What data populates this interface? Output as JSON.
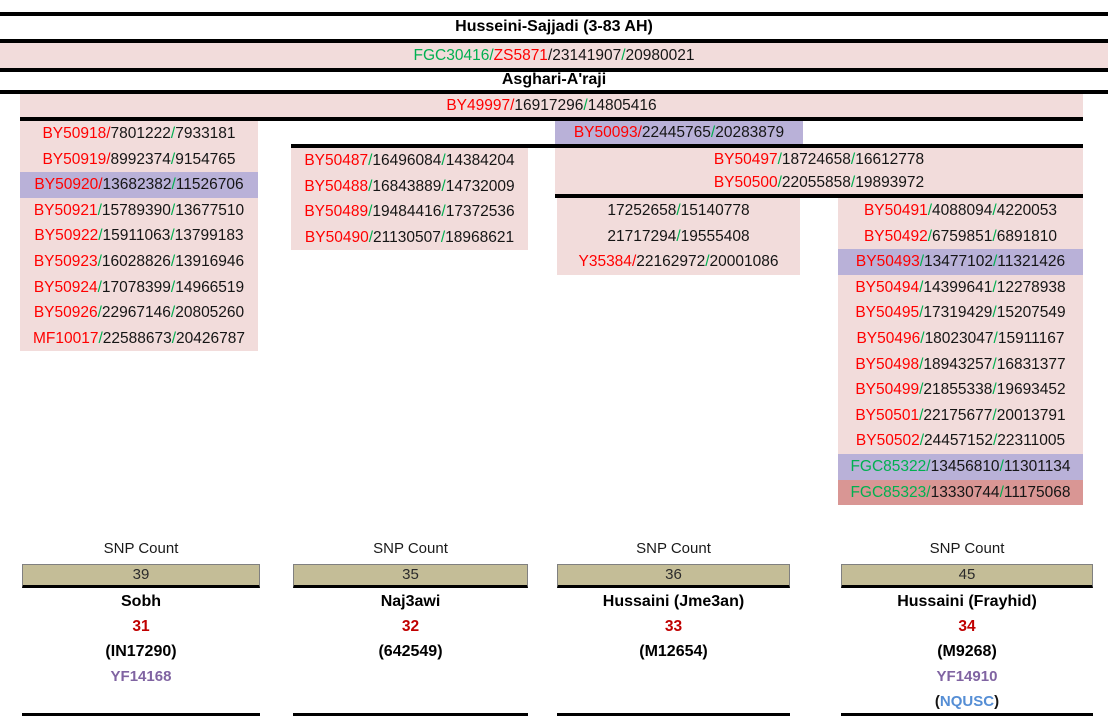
{
  "colors": {
    "pink_row": "#f2dcdb",
    "lavender_highlight": "#b9b1d8",
    "salmon_highlight": "#d99694",
    "tan_count_box": "#c4bd97",
    "snp_red": "#ff0000",
    "snp_green": "#00b050",
    "branch_number_red": "#c00000",
    "yfull_purple": "#8064a2",
    "id_blue": "#558ed5"
  },
  "header": {
    "title1": "Husseini-Sajjadi (3-83 AH)",
    "lineage": [
      [
        "FGC30416",
        "green"
      ],
      [
        "/",
        "green"
      ],
      [
        "ZS5871",
        "red"
      ],
      [
        "/",
        "black"
      ],
      [
        "23141907",
        "black"
      ],
      [
        "/",
        "green"
      ],
      [
        "20980021",
        "black"
      ]
    ],
    "title2": "Asghari-A'raji"
  },
  "tree": {
    "root": {
      "segments": [
        [
          "BY49997",
          "red"
        ],
        [
          "/",
          "red"
        ],
        [
          "16917296",
          "black"
        ],
        [
          "/",
          "green"
        ],
        [
          "14805416",
          "black"
        ]
      ]
    },
    "by50093": {
      "segments": [
        [
          "BY50093",
          "red"
        ],
        [
          "/",
          "red"
        ],
        [
          "22445765",
          "black"
        ],
        [
          "/",
          "green"
        ],
        [
          "20283879",
          "black"
        ]
      ],
      "bg": "lavender"
    },
    "col1_rows": [
      {
        "segments": [
          [
            "BY50918",
            "red"
          ],
          [
            "/",
            "red"
          ],
          [
            "7801222",
            "black"
          ],
          [
            "/",
            "green"
          ],
          [
            "7933181",
            "black"
          ]
        ],
        "bg": "pink"
      },
      {
        "segments": [
          [
            "BY50919",
            "red"
          ],
          [
            "/",
            "red"
          ],
          [
            "8992374",
            "black"
          ],
          [
            "/",
            "green"
          ],
          [
            "9154765",
            "black"
          ]
        ],
        "bg": "pink"
      },
      {
        "segments": [
          [
            "BY50920",
            "red"
          ],
          [
            "/",
            "red"
          ],
          [
            "13682382",
            "black"
          ],
          [
            "/",
            "green"
          ],
          [
            "11526706",
            "black"
          ]
        ],
        "bg": "lavender"
      },
      {
        "segments": [
          [
            "BY50921",
            "red"
          ],
          [
            "/",
            "green"
          ],
          [
            "15789390",
            "black"
          ],
          [
            "/",
            "green"
          ],
          [
            "13677510",
            "black"
          ]
        ],
        "bg": "pink"
      },
      {
        "segments": [
          [
            "BY50922",
            "red"
          ],
          [
            "/",
            "green"
          ],
          [
            "15911063",
            "black"
          ],
          [
            "/",
            "green"
          ],
          [
            "13799183",
            "black"
          ]
        ],
        "bg": "pink"
      },
      {
        "segments": [
          [
            "BY50923",
            "red"
          ],
          [
            "/",
            "green"
          ],
          [
            "16028826",
            "black"
          ],
          [
            "/",
            "green"
          ],
          [
            "13916946",
            "black"
          ]
        ],
        "bg": "pink"
      },
      {
        "segments": [
          [
            "BY50924",
            "red"
          ],
          [
            "/",
            "green"
          ],
          [
            "17078399",
            "black"
          ],
          [
            "/",
            "green"
          ],
          [
            "14966519",
            "black"
          ]
        ],
        "bg": "pink"
      },
      {
        "segments": [
          [
            "BY50926",
            "red"
          ],
          [
            "/",
            "green"
          ],
          [
            "22967146",
            "black"
          ],
          [
            "/",
            "green"
          ],
          [
            "20805260",
            "black"
          ]
        ],
        "bg": "pink"
      },
      {
        "segments": [
          [
            "MF10017",
            "red"
          ],
          [
            "/",
            "green"
          ],
          [
            "22588673",
            "black"
          ],
          [
            "/",
            "green"
          ],
          [
            "20426787",
            "black"
          ]
        ],
        "bg": "pink"
      }
    ],
    "col2_rows": [
      {
        "segments": [
          [
            "BY50487",
            "red"
          ],
          [
            "/",
            "green"
          ],
          [
            "16496084",
            "black"
          ],
          [
            "/",
            "green"
          ],
          [
            "14384204",
            "black"
          ]
        ],
        "bg": "pink"
      },
      {
        "segments": [
          [
            "BY50488",
            "red"
          ],
          [
            "/",
            "green"
          ],
          [
            "16843889",
            "black"
          ],
          [
            "/",
            "green"
          ],
          [
            "14732009",
            "black"
          ]
        ],
        "bg": "pink"
      },
      {
        "segments": [
          [
            "BY50489",
            "red"
          ],
          [
            "/",
            "green"
          ],
          [
            "19484416",
            "black"
          ],
          [
            "/",
            "green"
          ],
          [
            "17372536",
            "black"
          ]
        ],
        "bg": "pink"
      },
      {
        "segments": [
          [
            "BY50490",
            "red"
          ],
          [
            "/",
            "green"
          ],
          [
            "21130507",
            "black"
          ],
          [
            "/",
            "green"
          ],
          [
            "18968621",
            "black"
          ]
        ],
        "bg": "pink"
      }
    ],
    "mid_rows": [
      {
        "segments": [
          [
            "BY50497",
            "red"
          ],
          [
            "/",
            "green"
          ],
          [
            "18724658",
            "black"
          ],
          [
            "/",
            "green"
          ],
          [
            "16612778",
            "black"
          ]
        ],
        "bg": "pink"
      },
      {
        "segments": [
          [
            "BY50500",
            "red"
          ],
          [
            "/",
            "green"
          ],
          [
            "22055858",
            "black"
          ],
          [
            "/",
            "green"
          ],
          [
            "19893972",
            "black"
          ]
        ],
        "bg": "pink"
      }
    ],
    "col3_rows": [
      {
        "segments": [
          [
            "17252658",
            "black"
          ],
          [
            "/",
            "green"
          ],
          [
            "15140778",
            "black"
          ]
        ],
        "bg": "pink"
      },
      {
        "segments": [
          [
            "21717294",
            "black"
          ],
          [
            "/",
            "green"
          ],
          [
            "19555408",
            "black"
          ]
        ],
        "bg": "pink"
      },
      {
        "segments": [
          [
            "Y35384",
            "red"
          ],
          [
            "/",
            "red"
          ],
          [
            "22162972",
            "black"
          ],
          [
            "/",
            "green"
          ],
          [
            "20001086",
            "black"
          ]
        ],
        "bg": "pink"
      }
    ],
    "col4_rows": [
      {
        "segments": [
          [
            "BY50491",
            "red"
          ],
          [
            "/",
            "green"
          ],
          [
            "4088094",
            "black"
          ],
          [
            "/",
            "green"
          ],
          [
            "4220053",
            "black"
          ]
        ],
        "bg": "pink"
      },
      {
        "segments": [
          [
            "BY50492",
            "red"
          ],
          [
            "/",
            "green"
          ],
          [
            "6759851",
            "black"
          ],
          [
            "/",
            "green"
          ],
          [
            "6891810",
            "black"
          ]
        ],
        "bg": "pink"
      },
      {
        "segments": [
          [
            "BY50493",
            "red"
          ],
          [
            "/",
            "green"
          ],
          [
            "13477102",
            "black"
          ],
          [
            "/",
            "green"
          ],
          [
            "11321426",
            "black"
          ]
        ],
        "bg": "lavender"
      },
      {
        "segments": [
          [
            "BY50494",
            "red"
          ],
          [
            "/",
            "green"
          ],
          [
            "14399641",
            "black"
          ],
          [
            "/",
            "green"
          ],
          [
            "12278938",
            "black"
          ]
        ],
        "bg": "pink"
      },
      {
        "segments": [
          [
            "BY50495",
            "red"
          ],
          [
            "/",
            "green"
          ],
          [
            "17319429",
            "black"
          ],
          [
            "/",
            "green"
          ],
          [
            "15207549",
            "black"
          ]
        ],
        "bg": "pink"
      },
      {
        "segments": [
          [
            "BY50496",
            "red"
          ],
          [
            "/",
            "green"
          ],
          [
            "18023047",
            "black"
          ],
          [
            "/",
            "green"
          ],
          [
            "15911167",
            "black"
          ]
        ],
        "bg": "pink"
      },
      {
        "segments": [
          [
            "BY50498",
            "red"
          ],
          [
            "/",
            "green"
          ],
          [
            "18943257",
            "black"
          ],
          [
            "/",
            "green"
          ],
          [
            "16831377",
            "black"
          ]
        ],
        "bg": "pink"
      },
      {
        "segments": [
          [
            "BY50499",
            "red"
          ],
          [
            "/",
            "green"
          ],
          [
            "21855338",
            "black"
          ],
          [
            "/",
            "green"
          ],
          [
            "19693452",
            "black"
          ]
        ],
        "bg": "pink"
      },
      {
        "segments": [
          [
            "BY50501",
            "red"
          ],
          [
            "/",
            "green"
          ],
          [
            "22175677",
            "black"
          ],
          [
            "/",
            "green"
          ],
          [
            "20013791",
            "black"
          ]
        ],
        "bg": "pink"
      },
      {
        "segments": [
          [
            "BY50502",
            "red"
          ],
          [
            "/",
            "green"
          ],
          [
            "24457152",
            "black"
          ],
          [
            "/",
            "green"
          ],
          [
            "22311005",
            "black"
          ]
        ],
        "bg": "pink"
      },
      {
        "segments": [
          [
            "FGC85322",
            "green"
          ],
          [
            "/",
            "green"
          ],
          [
            "13456810",
            "black"
          ],
          [
            "/",
            "green"
          ],
          [
            "11301134",
            "black"
          ]
        ],
        "bg": "lavender"
      },
      {
        "segments": [
          [
            "FGC85323",
            "green"
          ],
          [
            "/",
            "green"
          ],
          [
            "13330744",
            "black"
          ],
          [
            "/",
            "green"
          ],
          [
            "11175068",
            "black"
          ]
        ],
        "bg": "salmon"
      }
    ]
  },
  "branches": [
    {
      "snp_count_label": "SNP Count",
      "snp_count": "39",
      "name": "Sobh",
      "number": "31",
      "kit_id": "(IN17290)",
      "yfull_id": "YF14168"
    },
    {
      "snp_count_label": "SNP Count",
      "snp_count": "35",
      "name": "Naj3awi",
      "number": "32",
      "kit_id": "(642549)"
    },
    {
      "snp_count_label": "SNP Count",
      "snp_count": "36",
      "name": "Hussaini (Jme3an)",
      "number": "33",
      "kit_id": "(M12654)"
    },
    {
      "snp_count_label": "SNP Count",
      "snp_count": "45",
      "name": "Hussaini (Frayhid)",
      "number": "34",
      "kit_id": "(M9268)",
      "yfull_id": "YF14910",
      "extra": [
        [
          "(",
          "black"
        ],
        [
          "NQUSC",
          "blue"
        ],
        [
          ")",
          "black"
        ]
      ]
    }
  ]
}
